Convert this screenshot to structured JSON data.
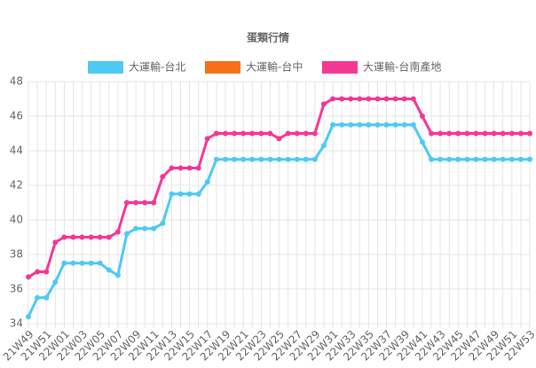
{
  "chart_data": {
    "type": "line",
    "title": "蛋類行情",
    "categories": [
      "21W49",
      null,
      "21W51",
      null,
      "22W01",
      null,
      "22W03",
      null,
      "22W05",
      null,
      "22W07",
      null,
      "22W09",
      null,
      "22W11",
      null,
      "22W13",
      null,
      "22W15",
      null,
      "22W17",
      null,
      "22W19",
      null,
      "22W21",
      null,
      "22W23",
      null,
      "22W25",
      null,
      "22W27",
      null,
      "22W29",
      null,
      "22W31",
      null,
      "22W33",
      null,
      "22W35",
      null,
      "22W37",
      null,
      "22W39",
      null,
      "22W41",
      null,
      "22W43",
      null,
      "22W45",
      null,
      "22W47",
      null,
      "22W49",
      null,
      "22W51",
      null,
      "22W53"
    ],
    "series": [
      {
        "name": "大運輸-台北",
        "color": "#4dc9f6",
        "values": [
          34.4,
          35.5,
          35.5,
          36.4,
          37.5,
          37.5,
          37.5,
          37.5,
          37.5,
          37.1,
          36.8,
          39.2,
          39.5,
          39.5,
          39.5,
          39.8,
          41.5,
          41.5,
          41.5,
          41.5,
          42.2,
          43.5,
          43.5,
          43.5,
          43.5,
          43.5,
          43.5,
          43.5,
          43.5,
          43.5,
          43.5,
          43.5,
          43.5,
          44.3,
          45.5,
          45.5,
          45.5,
          45.5,
          45.5,
          45.5,
          45.5,
          45.5,
          45.5,
          45.5,
          44.5,
          43.5,
          43.5,
          43.5,
          43.5,
          43.5,
          43.5,
          43.5,
          43.5,
          43.5,
          43.5,
          43.5,
          43.5
        ]
      },
      {
        "name": "大運輸-台中",
        "color": "#f67019",
        "values": [
          null,
          null,
          null,
          null,
          null,
          null,
          null,
          null,
          null,
          null,
          null,
          null,
          null,
          null,
          null,
          null,
          null,
          null,
          null,
          null,
          null,
          null,
          null,
          null,
          null,
          null,
          null,
          null,
          null,
          null,
          null,
          null,
          null,
          null,
          null,
          null,
          null,
          null,
          null,
          null,
          null,
          null,
          null,
          null,
          null,
          null,
          null,
          null,
          null,
          null,
          null,
          null,
          null,
          null,
          null,
          null,
          null
        ]
      },
      {
        "name": "大運輸-台南產地",
        "color": "#f53794",
        "values": [
          36.7,
          37.0,
          37.0,
          38.7,
          39.0,
          39.0,
          39.0,
          39.0,
          39.0,
          39.0,
          39.3,
          41.0,
          41.0,
          41.0,
          41.0,
          42.5,
          43.0,
          43.0,
          43.0,
          43.0,
          44.7,
          45.0,
          45.0,
          45.0,
          45.0,
          45.0,
          45.0,
          45.0,
          44.7,
          45.0,
          45.0,
          45.0,
          45.0,
          46.7,
          47.0,
          47.0,
          47.0,
          47.0,
          47.0,
          47.0,
          47.0,
          47.0,
          47.0,
          47.0,
          46.0,
          45.0,
          45.0,
          45.0,
          45.0,
          45.0,
          45.0,
          45.0,
          45.0,
          45.0,
          45.0,
          45.0,
          45.0
        ]
      }
    ],
    "ylim": [
      34,
      48
    ],
    "yticks": [
      34,
      36,
      38,
      40,
      42,
      44,
      46,
      48
    ],
    "grid": true
  }
}
